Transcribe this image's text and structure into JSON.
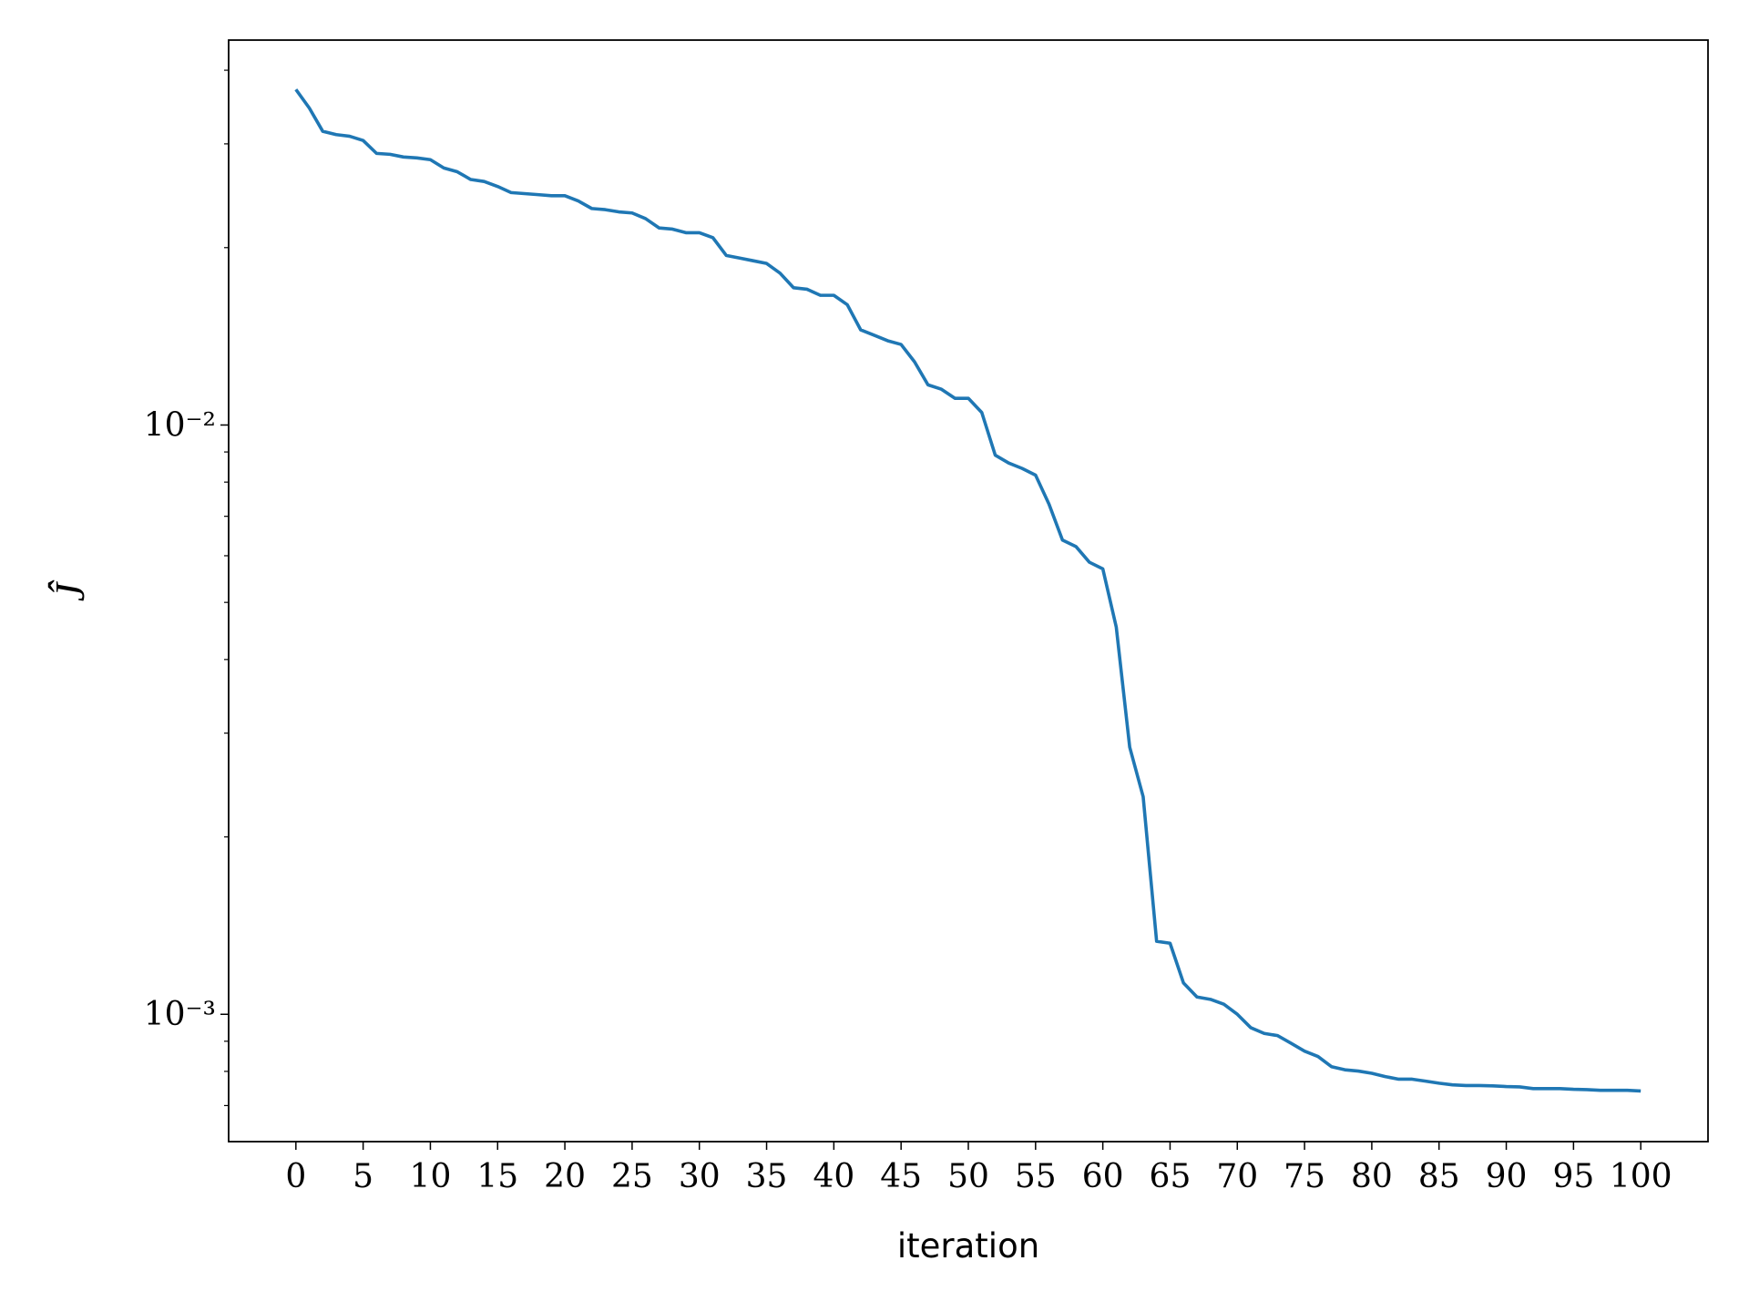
{
  "chart_data": {
    "type": "line",
    "x_label": "iteration",
    "y_label": "Ĵ",
    "y_scale": "log",
    "xlim": [
      -5,
      105
    ],
    "ylim": [
      0.000608,
      0.045
    ],
    "xticks": [
      0,
      5,
      10,
      15,
      20,
      25,
      30,
      35,
      40,
      45,
      50,
      55,
      60,
      65,
      70,
      75,
      80,
      85,
      90,
      95,
      100
    ],
    "yticks": [
      {
        "value": 0.001,
        "label": "10⁻³"
      },
      {
        "value": 0.01,
        "label": "10⁻²"
      }
    ],
    "yminorticks": [
      0.0007,
      0.0008,
      0.0009,
      0.002,
      0.003,
      0.004,
      0.005,
      0.006,
      0.007,
      0.008,
      0.009,
      0.02,
      0.03,
      0.04
    ],
    "x": [
      0,
      1,
      2,
      3,
      4,
      5,
      6,
      7,
      8,
      9,
      10,
      11,
      12,
      13,
      14,
      15,
      16,
      17,
      18,
      19,
      20,
      21,
      22,
      23,
      24,
      25,
      26,
      27,
      28,
      29,
      30,
      31,
      32,
      33,
      34,
      35,
      36,
      37,
      38,
      39,
      40,
      41,
      42,
      43,
      44,
      45,
      46,
      47,
      48,
      49,
      50,
      51,
      52,
      53,
      54,
      55,
      56,
      57,
      58,
      59,
      60,
      61,
      62,
      63,
      64,
      65,
      66,
      67,
      68,
      69,
      70,
      71,
      72,
      73,
      74,
      75,
      76,
      77,
      78,
      79,
      80,
      81,
      82,
      83,
      84,
      85,
      86,
      87,
      88,
      89,
      90,
      91,
      92,
      93,
      94,
      95,
      96,
      97,
      98,
      99,
      100
    ],
    "series": [
      {
        "color": "#1f77b4",
        "values": [
          0.0371,
          0.0345,
          0.0315,
          0.0311,
          0.0309,
          0.0304,
          0.0289,
          0.0288,
          0.0285,
          0.0284,
          0.0282,
          0.0273,
          0.0269,
          0.0261,
          0.0259,
          0.0254,
          0.0248,
          0.0247,
          0.0246,
          0.0245,
          0.0245,
          0.024,
          0.0233,
          0.0232,
          0.023,
          0.0229,
          0.0224,
          0.0216,
          0.0215,
          0.0212,
          0.0212,
          0.0208,
          0.0194,
          0.0192,
          0.019,
          0.0188,
          0.0181,
          0.0171,
          0.017,
          0.0166,
          0.0166,
          0.016,
          0.0145,
          0.0142,
          0.0139,
          0.0137,
          0.0128,
          0.0117,
          0.0115,
          0.0111,
          0.0111,
          0.0105,
          0.00889,
          0.00862,
          0.00844,
          0.00822,
          0.00734,
          0.00638,
          0.00622,
          0.00585,
          0.0057,
          0.00454,
          0.00284,
          0.00234,
          0.00133,
          0.00132,
          0.00113,
          0.00107,
          0.00106,
          0.00104,
          0.001,
          0.000949,
          0.000928,
          0.00092,
          0.000893,
          0.000866,
          0.000848,
          0.000815,
          0.000805,
          0.000801,
          0.000794,
          0.000784,
          0.000776,
          0.000776,
          0.00077,
          0.000764,
          0.000759,
          0.000757,
          0.000757,
          0.000756,
          0.000754,
          0.000753,
          0.000748,
          0.000748,
          0.000748,
          0.000746,
          0.000745,
          0.000743,
          0.000743,
          0.000743,
          0.000741
        ]
      }
    ]
  }
}
